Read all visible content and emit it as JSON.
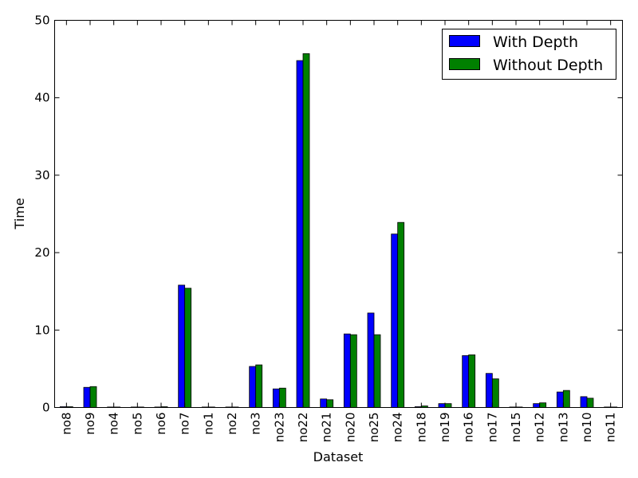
{
  "chart_data": {
    "type": "bar",
    "title": "",
    "xlabel": "Dataset",
    "ylabel": "Time",
    "ylim": [
      0,
      50
    ],
    "yticks": [
      0,
      10,
      20,
      30,
      40,
      50
    ],
    "grid": false,
    "legend_position": "top-right",
    "categories": [
      "no8",
      "no9",
      "no4",
      "no5",
      "no6",
      "no7",
      "no1",
      "no2",
      "no3",
      "no23",
      "no22",
      "no21",
      "no20",
      "no25",
      "no24",
      "no18",
      "no19",
      "no16",
      "no17",
      "no15",
      "no12",
      "no13",
      "no10",
      "no11"
    ],
    "series": [
      {
        "name": "With Depth",
        "color": "#0000ff",
        "values": [
          0.1,
          2.6,
          0.05,
          0.05,
          0.05,
          15.8,
          0.05,
          0.05,
          5.3,
          2.4,
          44.8,
          1.1,
          9.5,
          12.2,
          22.4,
          0.1,
          0.5,
          6.7,
          4.4,
          0.05,
          0.5,
          2.0,
          1.4,
          0.05
        ]
      },
      {
        "name": "Without Depth",
        "color": "#008000",
        "values": [
          0.1,
          2.7,
          0.05,
          0.05,
          0.1,
          15.4,
          0.05,
          0.05,
          5.5,
          2.5,
          45.7,
          1.0,
          9.4,
          9.4,
          23.9,
          0.2,
          0.5,
          6.8,
          3.7,
          0.05,
          0.6,
          2.2,
          1.2,
          0.05
        ]
      }
    ]
  }
}
